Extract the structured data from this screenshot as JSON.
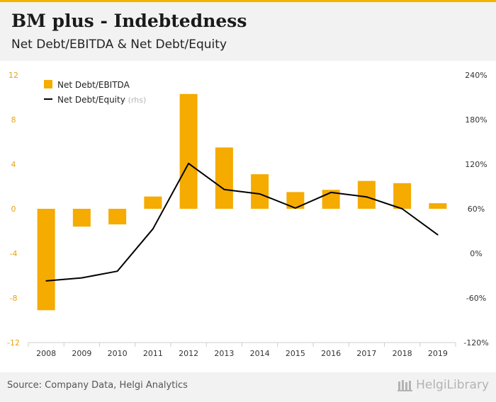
{
  "header": {
    "title": "BM plus - Indebtedness",
    "subtitle": "Net Debt/EBITDA & Net Debt/Equity"
  },
  "footer": {
    "source": "Source: Company Data, Helgi Analytics",
    "brand": "HelgiLibrary"
  },
  "colors": {
    "bar": "#f5ab00",
    "line": "#000000",
    "left_axis_text": "#e8a317",
    "right_axis_text": "#333333",
    "accent": "#f0b400"
  },
  "chart_data": {
    "type": "bar",
    "categories": [
      "2008",
      "2009",
      "2010",
      "2011",
      "2012",
      "2013",
      "2014",
      "2015",
      "2016",
      "2017",
      "2018",
      "2019"
    ],
    "series": [
      {
        "name": "Net Debt/EBITDA",
        "type": "bar",
        "axis": "left",
        "values": [
          -9.1,
          -1.6,
          -1.4,
          1.1,
          10.3,
          5.5,
          3.1,
          1.5,
          1.7,
          2.5,
          2.3,
          0.5
        ]
      },
      {
        "name": "Net Debt/Equity",
        "suffix": "(rhs)",
        "type": "line",
        "axis": "right",
        "values": [
          -37,
          -33,
          -24,
          33,
          121,
          86,
          80,
          61,
          82,
          76,
          60,
          25
        ]
      }
    ],
    "left_axis": {
      "ticks": [
        "12",
        "8",
        "4",
        "0",
        "-4",
        "-8",
        "-12"
      ],
      "ylim": [
        -12,
        12
      ]
    },
    "right_axis": {
      "ticks": [
        "240%",
        "180%",
        "120%",
        "60%",
        "0%",
        "-60%",
        "-120%"
      ],
      "ylim": [
        -120,
        240
      ]
    },
    "legend": "top-left",
    "grid": false
  }
}
